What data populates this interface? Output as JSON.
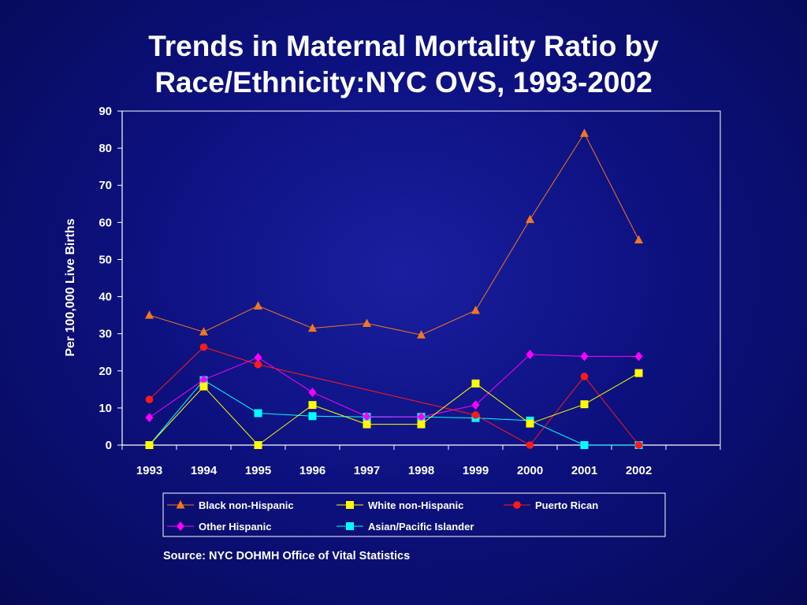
{
  "chart_data": {
    "type": "line",
    "title_line1": "Trends in Maternal Mortality Ratio by",
    "title_line2": "Race/Ethnicity:NYC OVS, 1993-2002",
    "ylabel": "Per 100,000 Live Births",
    "xlabel": "",
    "ylim": [
      0,
      90
    ],
    "yticks": [
      "0",
      "10",
      "20",
      "30",
      "40",
      "50",
      "60",
      "70",
      "80",
      "90"
    ],
    "categories": [
      "1993",
      "1994",
      "1995",
      "1996",
      "1997",
      "1998",
      "1999",
      "2000",
      "2001",
      "2002"
    ],
    "grid": false,
    "legend_position": "bottom",
    "series": [
      {
        "name": "Black non-Hispanic",
        "color": "#f07820",
        "marker": "triangle",
        "values": [
          35.0,
          30.5,
          37.5,
          31.5,
          32.8,
          29.7,
          36.3,
          60.8,
          84.0,
          55.3
        ]
      },
      {
        "name": "White non-Hispanic",
        "color": "#ffff00",
        "marker": "square",
        "values": [
          0,
          15.8,
          0,
          10.8,
          5.6,
          5.6,
          16.6,
          5.8,
          11.0,
          19.4
        ]
      },
      {
        "name": "Puerto Rican",
        "color": "#ff1a1a",
        "marker": "circle",
        "values": [
          12.3,
          26.4,
          21.7,
          null,
          null,
          null,
          8.1,
          0,
          18.5,
          0
        ]
      },
      {
        "name": "Other Hispanic",
        "color": "#ff00ff",
        "marker": "diamond",
        "values": [
          7.4,
          17.6,
          23.6,
          14.2,
          7.7,
          7.6,
          10.8,
          24.4,
          23.9,
          23.9
        ]
      },
      {
        "name": "Asian/Pacific Islander",
        "color": "#00ffff",
        "marker": "square",
        "values": [
          0,
          17.5,
          8.6,
          7.8,
          7.6,
          7.6,
          7.3,
          6.6,
          0,
          0
        ]
      }
    ],
    "source": "Source:  NYC DOHMH Office of Vital Statistics"
  }
}
